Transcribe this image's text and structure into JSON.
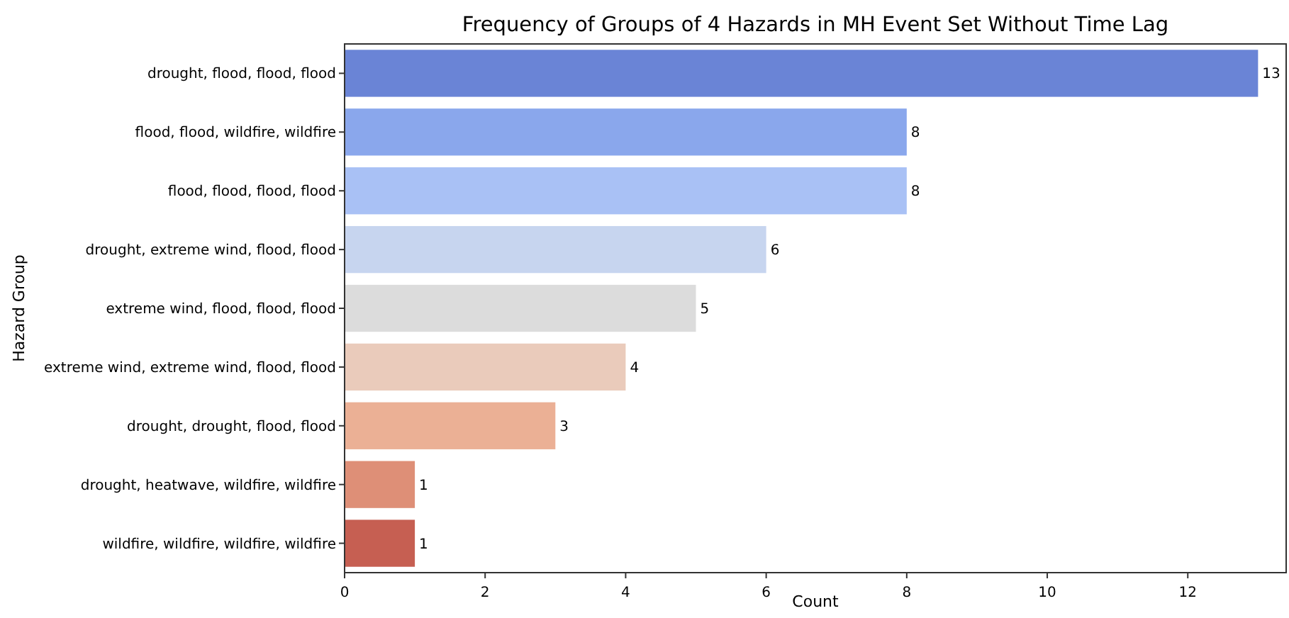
{
  "chart_data": {
    "type": "bar",
    "orientation": "horizontal",
    "title": "Frequency of Groups of 4 Hazards in MH Event Set Without Time Lag",
    "xlabel": "Count",
    "ylabel": "Hazard Group",
    "categories": [
      "drought, flood, flood, flood",
      "flood, flood, wildfire, wildfire",
      "flood, flood, flood, flood",
      "drought, extreme wind, flood, flood",
      "extreme wind, flood, flood, flood",
      "extreme wind, extreme wind, flood, flood",
      "drought, drought, flood, flood",
      "drought, heatwave, wildfire, wildfire",
      "wildfire, wildfire, wildfire, wildfire"
    ],
    "values": [
      13,
      8,
      8,
      6,
      5,
      4,
      3,
      1,
      1
    ],
    "colors": [
      "#6a84d6",
      "#8aa7ec",
      "#a9c1f5",
      "#c7d5ef",
      "#dcdcdc",
      "#eacbbb",
      "#ebb095",
      "#de8f77",
      "#c65f52"
    ],
    "xlim": [
      0,
      13.4
    ],
    "xticks": [
      0,
      2,
      4,
      6,
      8,
      10,
      12
    ],
    "data_labels": true,
    "grid": false
  }
}
